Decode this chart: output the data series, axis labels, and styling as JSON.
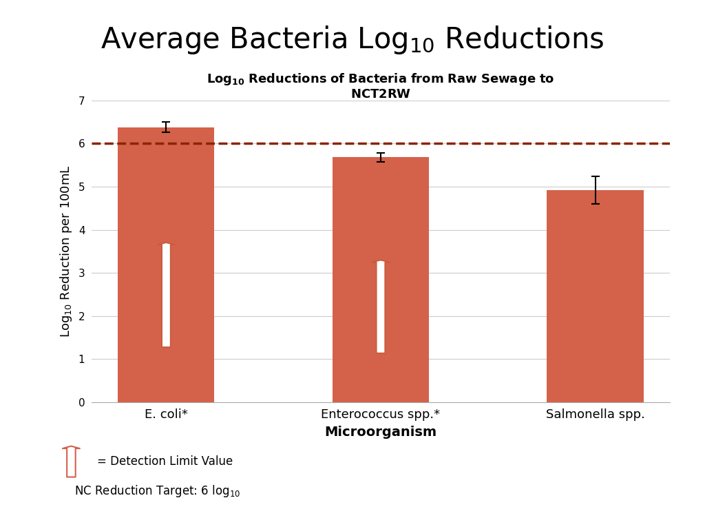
{
  "categories": [
    "E. coli*",
    "Enterococcus spp.*",
    "Salmonella spp."
  ],
  "values": [
    6.38,
    5.68,
    4.92
  ],
  "errors": [
    0.12,
    0.1,
    0.32
  ],
  "bar_color": "#D4624A",
  "dashed_line_y": 6.0,
  "dashed_line_color": "#8B2500",
  "ylim": [
    0,
    7
  ],
  "yticks": [
    0,
    1,
    2,
    3,
    4,
    5,
    6,
    7
  ],
  "arrow_bars": [
    0,
    1
  ],
  "background_color": "#ffffff",
  "grid_color": "#cccccc"
}
